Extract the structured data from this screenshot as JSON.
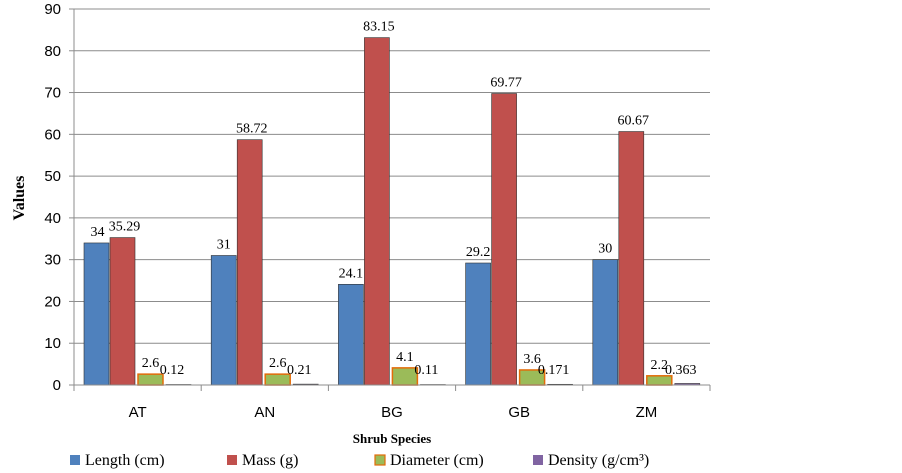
{
  "chart_data": {
    "type": "bar",
    "categories": [
      "AT",
      "AN",
      "BG",
      "GB",
      "ZM"
    ],
    "series": [
      {
        "name": "Length (cm)",
        "values": [
          34,
          31,
          24.1,
          29.2,
          30
        ],
        "labels": [
          "34",
          "31",
          "24.1",
          "29.2",
          "30"
        ],
        "color": "#4F81BD"
      },
      {
        "name": "Mass (g)",
        "values": [
          35.29,
          58.72,
          83.15,
          69.77,
          60.67
        ],
        "labels": [
          "35.29",
          "58.72",
          "83.15",
          "69.77",
          "60.67"
        ],
        "color": "#C0504D"
      },
      {
        "name": "Diameter (cm)",
        "values": [
          2.6,
          2.6,
          4.1,
          3.6,
          2.2
        ],
        "labels": [
          "2.6",
          "2.6",
          "4.1",
          "3.6",
          "2.2"
        ],
        "color": "#9BBB59"
      },
      {
        "name": "Density (g/cm³)",
        "values": [
          0.12,
          0.21,
          0.11,
          0.171,
          0.363
        ],
        "labels": [
          "0.12",
          "0.21",
          "0.11",
          "0.171",
          "0.363"
        ],
        "color": "#8064A2"
      }
    ],
    "xlabel": "Shrub Species",
    "ylabel": "Values",
    "ylim": [
      0,
      90
    ],
    "yticks": [
      0,
      10,
      20,
      30,
      40,
      50,
      60,
      70,
      80,
      90
    ],
    "grid": true,
    "legend_position": "bottom",
    "bar_outline_color": "#E36C09"
  }
}
